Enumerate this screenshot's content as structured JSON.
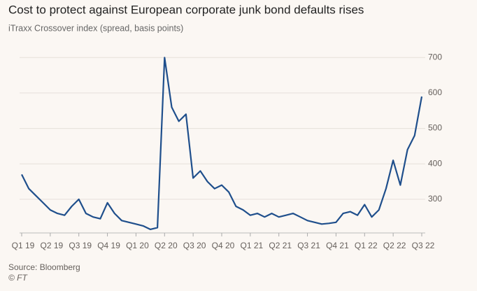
{
  "chart_data": {
    "type": "line",
    "title": "Cost to protect against European corporate junk bond defaults rises",
    "subtitle": "iTraxx Crossover index (spread, basis points)",
    "source": "Source: Bloomberg",
    "credit": "© FT",
    "categories": [
      "Q1 19",
      null,
      null,
      null,
      "Q2 19",
      null,
      null,
      null,
      "Q3 19",
      null,
      null,
      null,
      "Q4 19",
      null,
      null,
      null,
      "Q1 20",
      null,
      null,
      null,
      "Q2 20",
      null,
      null,
      null,
      "Q3 20",
      null,
      null,
      null,
      "Q4 20",
      null,
      null,
      null,
      "Q1 21",
      null,
      null,
      null,
      "Q2 21",
      null,
      null,
      null,
      "Q3 21",
      null,
      null,
      null,
      "Q4 21",
      null,
      null,
      null,
      "Q1 22",
      null,
      null,
      null,
      "Q2 22",
      null,
      null,
      null,
      "Q3 22"
    ],
    "series": [
      {
        "name": "iTraxx Crossover",
        "color": "#1f4f8c",
        "values": [
          370,
          330,
          310,
          290,
          270,
          260,
          255,
          280,
          300,
          260,
          250,
          245,
          290,
          260,
          240,
          235,
          230,
          225,
          215,
          220,
          700,
          560,
          520,
          540,
          360,
          380,
          350,
          330,
          340,
          320,
          280,
          270,
          255,
          260,
          250,
          260,
          250,
          255,
          260,
          250,
          240,
          235,
          230,
          232,
          235,
          260,
          265,
          255,
          285,
          250,
          270,
          330,
          410,
          340,
          440,
          480,
          590
        ]
      }
    ],
    "ylim": [
      205,
      740
    ],
    "yticks": [
      300,
      400,
      500,
      600,
      700
    ],
    "grid": true
  }
}
